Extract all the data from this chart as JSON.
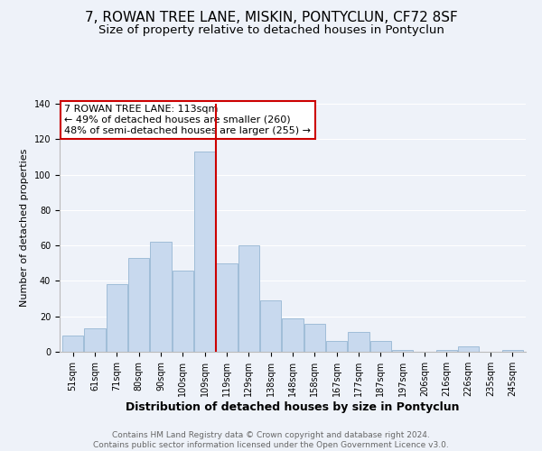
{
  "title": "7, ROWAN TREE LANE, MISKIN, PONTYCLUN, CF72 8SF",
  "subtitle": "Size of property relative to detached houses in Pontyclun",
  "xlabel": "Distribution of detached houses by size in Pontyclun",
  "ylabel": "Number of detached properties",
  "categories": [
    "51sqm",
    "61sqm",
    "71sqm",
    "80sqm",
    "90sqm",
    "100sqm",
    "109sqm",
    "119sqm",
    "129sqm",
    "138sqm",
    "148sqm",
    "158sqm",
    "167sqm",
    "177sqm",
    "187sqm",
    "197sqm",
    "206sqm",
    "216sqm",
    "226sqm",
    "235sqm",
    "245sqm"
  ],
  "values": [
    9,
    13,
    38,
    53,
    62,
    46,
    113,
    50,
    60,
    29,
    19,
    16,
    6,
    11,
    6,
    1,
    0,
    1,
    3,
    0,
    1
  ],
  "bar_color": "#c8d9ee",
  "bar_edge_color": "#a0bdd8",
  "vline_x": 6.5,
  "vline_color": "#cc0000",
  "annotation_title": "7 ROWAN TREE LANE: 113sqm",
  "annotation_line1": "← 49% of detached houses are smaller (260)",
  "annotation_line2": "48% of semi-detached houses are larger (255) →",
  "annotation_box_color": "#ffffff",
  "annotation_box_edge": "#cc0000",
  "ylim": [
    0,
    140
  ],
  "footer1": "Contains HM Land Registry data © Crown copyright and database right 2024.",
  "footer2": "Contains public sector information licensed under the Open Government Licence v3.0.",
  "background_color": "#eef2f9",
  "title_fontsize": 11,
  "subtitle_fontsize": 9.5,
  "ylabel_fontsize": 8,
  "xlabel_fontsize": 9,
  "tick_fontsize": 7,
  "annotation_fontsize": 8,
  "footer_fontsize": 6.5
}
